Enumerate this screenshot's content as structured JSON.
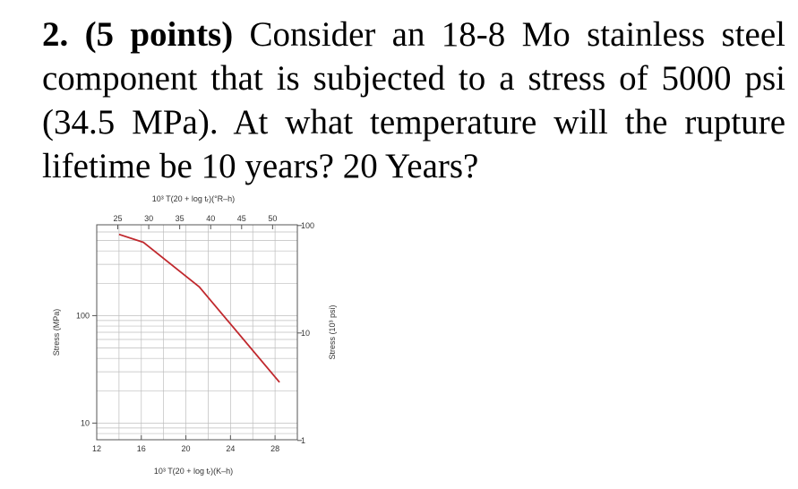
{
  "question": {
    "number": "2.",
    "points": "(5 points)",
    "text": "Consider an 18-8 Mo stainless steel component that is subjected to a stress of 5000 psi (34.5 MPa). At what temperature will the rupture lifetime be 10 years? 20 Years?"
  },
  "chart_data": {
    "type": "line",
    "top_axis_label": "10³ T(20 + log tᵣ)(°R–h)",
    "top_ticks": [
      "25",
      "30",
      "35",
      "40",
      "45",
      "50"
    ],
    "bottom_axis_label": "10³ T(20 + log tᵣ)(K–h)",
    "bottom_ticks": [
      "12",
      "16",
      "20",
      "24",
      "28"
    ],
    "left_axis_label": "Stress (MPa)",
    "left_ticks": [
      "100",
      "10"
    ],
    "right_axis_label": "Stress (10³ psi)",
    "right_ticks": [
      "100",
      "10",
      "1"
    ],
    "x_range_K": [
      12,
      30
    ],
    "y_range_MPa_log": [
      7,
      700
    ],
    "grid": true,
    "series": [
      {
        "color": "#c0282d",
        "points_x_Kh": [
          14.0,
          16.2,
          21.2,
          28.4
        ],
        "points_y_MPa": [
          570,
          480,
          185,
          24
        ]
      }
    ]
  }
}
